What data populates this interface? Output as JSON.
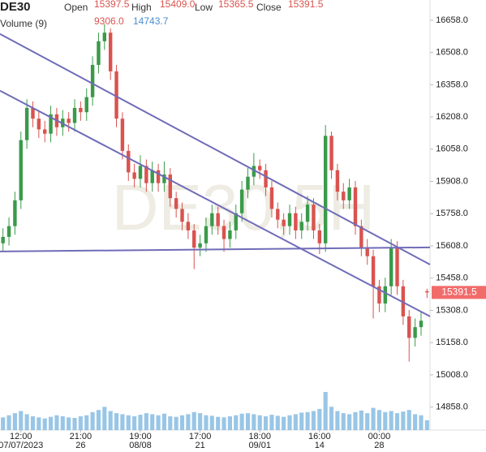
{
  "chart_data": {
    "type": "candlestick",
    "symbol": "DE30",
    "watermark": "DE30,5H",
    "header": {
      "open": "Open",
      "high": "High",
      "low": "Low",
      "close": "Close"
    },
    "value_labels": {
      "open": "15397.5",
      "high": "15409.0",
      "low": "15365.5",
      "close": "15391.5"
    },
    "volume_label": "Volume (9)",
    "volume_value_label": "9306.0",
    "volume_ma_label": "14743.7",
    "up_color": "#3a9a4a",
    "down_color": "#d9534f",
    "volume_color": "#7fb8e0",
    "trendline_color": "#6f6cb8",
    "categories": [
      null,
      null,
      null,
      [
        "12:00",
        "07/07/2023"
      ],
      null,
      null,
      null,
      null,
      null,
      null,
      null,
      null,
      null,
      [
        "21:00",
        "26"
      ],
      null,
      null,
      null,
      null,
      null,
      null,
      null,
      null,
      null,
      [
        "19:00",
        "08/08"
      ],
      null,
      null,
      null,
      null,
      null,
      null,
      null,
      null,
      null,
      [
        "17:00",
        "21"
      ],
      null,
      null,
      null,
      null,
      null,
      null,
      null,
      null,
      null,
      [
        "18:00",
        "09/01"
      ],
      null,
      null,
      null,
      null,
      null,
      null,
      null,
      null,
      null,
      [
        "16:00",
        "14"
      ],
      null,
      null,
      null,
      null,
      null,
      null,
      null,
      null,
      null,
      [
        "00:00",
        "28"
      ],
      null,
      null,
      null,
      null,
      null,
      null,
      null,
      null
    ],
    "open": [
      15620,
      15650,
      15700,
      15820,
      16100,
      16250,
      16200,
      16150,
      16130,
      16220,
      16160,
      16200,
      16180,
      16250,
      16230,
      16300,
      16450,
      16560,
      16600,
      16420,
      16200,
      16050,
      15950,
      15920,
      15980,
      15900,
      15960,
      15900,
      15940,
      15830,
      15780,
      15720,
      15680,
      15600,
      15620,
      15700,
      15760,
      15700,
      15640,
      15680,
      15760,
      15870,
      15930,
      15980,
      15960,
      15880,
      15780,
      15730,
      15700,
      15760,
      15680,
      15720,
      15800,
      15680,
      15620,
      16120,
      15960,
      15860,
      15820,
      15880,
      15700,
      15600,
      15560,
      15420,
      15340,
      15420,
      15600,
      15420,
      15280,
      15180,
      15230,
      15397.5
    ],
    "high": [
      15690,
      15740,
      15860,
      16140,
      16290,
      16280,
      16240,
      16190,
      16260,
      16250,
      16240,
      16230,
      16290,
      16280,
      16340,
      16490,
      16600,
      16640,
      16620,
      16450,
      16230,
      16080,
      15990,
      16030,
      16010,
      16000,
      15990,
      16000,
      15970,
      15860,
      15810,
      15760,
      15710,
      15660,
      15740,
      15800,
      15790,
      15730,
      15720,
      15800,
      15910,
      15970,
      16040,
      16010,
      15990,
      15910,
      15810,
      15760,
      15800,
      15790,
      15760,
      15840,
      15830,
      15710,
      16170,
      16140,
      15990,
      15900,
      15920,
      15910,
      15730,
      15640,
      15590,
      15450,
      15460,
      15640,
      15630,
      15450,
      15310,
      15270,
      15300,
      15409
    ],
    "low": [
      15580,
      15610,
      15660,
      15780,
      16060,
      16160,
      16110,
      16090,
      16090,
      16120,
      16120,
      16140,
      16140,
      16190,
      16190,
      16260,
      16410,
      16520,
      16380,
      16160,
      16010,
      15910,
      15880,
      15880,
      15860,
      15860,
      15860,
      15860,
      15790,
      15740,
      15680,
      15640,
      15500,
      15560,
      15580,
      15660,
      15660,
      15580,
      15600,
      15640,
      15720,
      15830,
      15890,
      15920,
      15840,
      15740,
      15690,
      15660,
      15660,
      15640,
      15640,
      15680,
      15640,
      15570,
      15580,
      15920,
      15820,
      15780,
      15780,
      15660,
      15560,
      15520,
      15270,
      15300,
      15300,
      15380,
      15380,
      15240,
      15070,
      15140,
      15190,
      15365.5
    ],
    "close": [
      15650,
      15700,
      15820,
      16100,
      16250,
      16200,
      16150,
      16130,
      16220,
      16160,
      16200,
      16180,
      16250,
      16230,
      16300,
      16450,
      16560,
      16600,
      16420,
      16200,
      16050,
      15950,
      15920,
      15980,
      15900,
      15960,
      15900,
      15940,
      15830,
      15780,
      15720,
      15680,
      15600,
      15620,
      15700,
      15760,
      15700,
      15640,
      15680,
      15760,
      15870,
      15930,
      15980,
      15960,
      15880,
      15780,
      15730,
      15700,
      15760,
      15680,
      15720,
      15800,
      15680,
      15620,
      16120,
      15960,
      15860,
      15820,
      15880,
      15700,
      15600,
      15560,
      15420,
      15340,
      15420,
      15600,
      15420,
      15280,
      15180,
      15230,
      15260,
      15391.5
    ],
    "volume": [
      12000,
      14000,
      16000,
      18000,
      15000,
      13000,
      12000,
      11000,
      12500,
      14000,
      13000,
      12000,
      11500,
      13000,
      14000,
      17000,
      19000,
      22000,
      18000,
      16000,
      15000,
      14000,
      13000,
      14500,
      16000,
      15000,
      14000,
      15500,
      13000,
      12500,
      14000,
      15000,
      17000,
      16000,
      14000,
      13500,
      12500,
      12000,
      13000,
      14000,
      15500,
      16000,
      15000,
      14000,
      13000,
      14500,
      13500,
      12500,
      14000,
      15000,
      16500,
      17000,
      18000,
      20000,
      36000,
      22000,
      18000,
      16000,
      15000,
      17000,
      18500,
      16000,
      21000,
      19000,
      17000,
      18000,
      16000,
      17500,
      19000,
      15000,
      14000,
      9306
    ],
    "volume_ylim": [
      0,
      46000
    ],
    "ylim": [
      14751,
      16752
    ],
    "yticks": [
      {
        "value": 14858,
        "label": "14858.0"
      },
      {
        "value": 15008,
        "label": "15008.0"
      },
      {
        "value": 15158,
        "label": "15158.0"
      },
      {
        "value": 15308,
        "label": "15308.0"
      },
      {
        "value": 15458,
        "label": "15458.0"
      },
      {
        "value": 15608,
        "label": "15608.0"
      },
      {
        "value": 15758,
        "label": "15758.0"
      },
      {
        "value": 15908,
        "label": "15908.0"
      },
      {
        "value": 16058,
        "label": "16058.0"
      },
      {
        "value": 16208,
        "label": "16208.0"
      },
      {
        "value": 16358,
        "label": "16358.0"
      },
      {
        "value": 16508,
        "label": "16508.0"
      },
      {
        "value": 16658,
        "label": "16658.0"
      }
    ],
    "trendlines": [
      {
        "x": [
          -0.5,
          71.5
        ],
        "y": [
          16594,
          15521
        ]
      },
      {
        "x": [
          -0.5,
          71.5
        ],
        "y": [
          16330,
          15280
        ]
      },
      {
        "x": [
          -0.5,
          71.5
        ],
        "y": [
          15582,
          15601
        ]
      }
    ]
  }
}
